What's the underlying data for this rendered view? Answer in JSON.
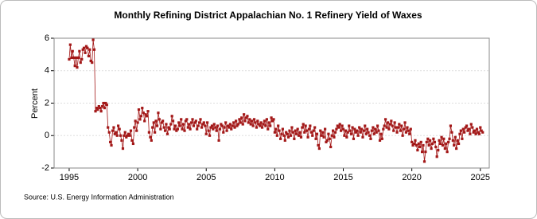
{
  "chart_data": {
    "type": "line",
    "title": "Monthly Refining District Appalachian No. 1 Refinery Yield of Waxes",
    "ylabel": "Percent",
    "source": "Source: U.S. Energy Information Administration",
    "xlim": [
      1993.9,
      2025.65
    ],
    "ylim": [
      -2,
      6
    ],
    "xticks": [
      1995,
      2000,
      2005,
      2010,
      2015,
      2020,
      2025
    ],
    "yticks": [
      -2,
      0,
      2,
      4,
      6
    ],
    "grid": true,
    "x": [
      1995,
      1995.08,
      1995.17,
      1995.25,
      1995.33,
      1995.42,
      1995.5,
      1995.58,
      1995.67,
      1995.75,
      1995.83,
      1995.92,
      1996,
      1996.08,
      1996.17,
      1996.25,
      1996.33,
      1996.42,
      1996.5,
      1996.58,
      1996.67,
      1996.75,
      1996.83,
      1996.92,
      1997,
      1997.08,
      1997.17,
      1997.25,
      1997.33,
      1997.42,
      1997.5,
      1997.58,
      1997.67,
      1997.75,
      1997.83,
      1997.92,
      1998,
      1998.08,
      1998.17,
      1998.25,
      1998.33,
      1998.42,
      1998.5,
      1998.58,
      1998.67,
      1998.75,
      1998.83,
      1998.92,
      1999,
      1999.08,
      1999.17,
      1999.25,
      1999.33,
      1999.42,
      1999.5,
      1999.58,
      1999.67,
      1999.75,
      1999.83,
      1999.92,
      2000,
      2000.08,
      2000.17,
      2000.25,
      2000.33,
      2000.42,
      2000.5,
      2000.58,
      2000.67,
      2000.75,
      2000.83,
      2000.92,
      2001,
      2001.08,
      2001.17,
      2001.25,
      2001.33,
      2001.42,
      2001.5,
      2001.58,
      2001.67,
      2001.75,
      2001.83,
      2001.92,
      2002,
      2002.08,
      2002.17,
      2002.25,
      2002.33,
      2002.42,
      2002.5,
      2002.58,
      2002.67,
      2002.75,
      2002.83,
      2002.92,
      2003,
      2003.08,
      2003.17,
      2003.25,
      2003.33,
      2003.42,
      2003.5,
      2003.58,
      2003.67,
      2003.75,
      2003.83,
      2003.92,
      2004,
      2004.08,
      2004.17,
      2004.25,
      2004.33,
      2004.42,
      2004.5,
      2004.58,
      2004.67,
      2004.75,
      2004.83,
      2004.92,
      2005,
      2005.08,
      2005.17,
      2005.25,
      2005.33,
      2005.42,
      2005.5,
      2005.58,
      2005.67,
      2005.75,
      2005.83,
      2005.92,
      2006,
      2006.08,
      2006.17,
      2006.25,
      2006.33,
      2006.42,
      2006.5,
      2006.58,
      2006.67,
      2006.75,
      2006.83,
      2006.92,
      2007,
      2007.08,
      2007.17,
      2007.25,
      2007.33,
      2007.42,
      2007.5,
      2007.58,
      2007.67,
      2007.75,
      2007.83,
      2007.92,
      2008,
      2008.08,
      2008.17,
      2008.25,
      2008.33,
      2008.42,
      2008.5,
      2008.58,
      2008.67,
      2008.75,
      2008.83,
      2008.92,
      2009,
      2009.08,
      2009.17,
      2009.25,
      2009.33,
      2009.42,
      2009.5,
      2009.58,
      2009.67,
      2009.75,
      2009.83,
      2009.92,
      2010,
      2010.08,
      2010.17,
      2010.25,
      2010.33,
      2010.42,
      2010.5,
      2010.58,
      2010.67,
      2010.75,
      2010.83,
      2010.92,
      2011,
      2011.08,
      2011.17,
      2011.25,
      2011.33,
      2011.42,
      2011.5,
      2011.58,
      2011.67,
      2011.75,
      2011.83,
      2011.92,
      2012,
      2012.08,
      2012.17,
      2012.25,
      2012.33,
      2012.42,
      2012.5,
      2012.58,
      2012.67,
      2012.75,
      2012.83,
      2012.92,
      2013,
      2013.08,
      2013.17,
      2013.25,
      2013.33,
      2013.42,
      2013.5,
      2013.58,
      2013.67,
      2013.75,
      2013.83,
      2013.92,
      2014,
      2014.08,
      2014.17,
      2014.25,
      2014.33,
      2014.42,
      2014.5,
      2014.58,
      2014.67,
      2014.75,
      2014.83,
      2014.92,
      2015,
      2015.08,
      2015.17,
      2015.25,
      2015.33,
      2015.42,
      2015.5,
      2015.58,
      2015.67,
      2015.75,
      2015.83,
      2015.92,
      2016,
      2016.08,
      2016.17,
      2016.25,
      2016.33,
      2016.42,
      2016.5,
      2016.58,
      2016.67,
      2016.75,
      2016.83,
      2016.92,
      2017,
      2017.08,
      2017.17,
      2017.25,
      2017.33,
      2017.42,
      2017.5,
      2017.58,
      2017.67,
      2017.75,
      2017.83,
      2017.92,
      2018,
      2018.08,
      2018.17,
      2018.25,
      2018.33,
      2018.42,
      2018.5,
      2018.58,
      2018.67,
      2018.75,
      2018.83,
      2018.92,
      2019,
      2019.08,
      2019.17,
      2019.25,
      2019.33,
      2019.42,
      2019.5,
      2019.58,
      2019.67,
      2019.75,
      2019.83,
      2019.92,
      2020,
      2020.08,
      2020.17,
      2020.25,
      2020.33,
      2020.42,
      2020.5,
      2020.58,
      2020.67,
      2020.75,
      2020.83,
      2020.92,
      2021,
      2021.08,
      2021.17,
      2021.25,
      2021.33,
      2021.42,
      2021.5,
      2021.58,
      2021.67,
      2021.75,
      2021.83,
      2021.92,
      2022,
      2022.08,
      2022.17,
      2022.25,
      2022.33,
      2022.42,
      2022.5,
      2022.58,
      2022.67,
      2022.75,
      2022.83,
      2022.92,
      2023,
      2023.08,
      2023.17,
      2023.25,
      2023.33,
      2023.42,
      2023.5,
      2023.58,
      2023.67,
      2023.75,
      2023.83,
      2023.92,
      2024,
      2024.08,
      2024.17,
      2024.25,
      2024.33,
      2024.42,
      2024.5,
      2024.58,
      2024.67,
      2024.75,
      2024.83,
      2024.92,
      2025,
      2025.08,
      2025.17
    ],
    "series": [
      {
        "color": "#a31818",
        "values": [
          4.7,
          5.6,
          4.8,
          5.2,
          4.8,
          4.3,
          4.8,
          4.2,
          4.8,
          5.2,
          4.5,
          4.7,
          5.3,
          5.4,
          5.1,
          5.5,
          5.4,
          4.9,
          5.3,
          4.6,
          4.5,
          5.9,
          5.3,
          1.5,
          1.7,
          1.6,
          1.8,
          1.7,
          1.5,
          1.8,
          2.0,
          1.7,
          2.0,
          1.9,
          0.5,
          0.2,
          -0.4,
          -0.6,
          0.3,
          0.5,
          0.1,
          0.2,
          0.0,
          0.6,
          0.4,
          0.0,
          -0.3,
          -0.8,
          0.0,
          0.2,
          -0.1,
          0.0,
          0.1,
          0.0,
          0.3,
          -0.3,
          -0.5,
          0.5,
          0.9,
          0.3,
          0.8,
          1.6,
          1.0,
          1.2,
          1.7,
          1.4,
          0.9,
          1.3,
          1.2,
          1.5,
          0.2,
          -0.1,
          -0.3,
          0.5,
          0.8,
          0.2,
          0.9,
          0.6,
          1.4,
          1.0,
          0.4,
          0.8,
          0.9,
          0.5,
          0.3,
          0.7,
          0.1,
          0.5,
          0.4,
          0.7,
          1.2,
          0.9,
          0.4,
          0.6,
          0.3,
          0.4,
          0.8,
          0.6,
          1.0,
          0.4,
          0.7,
          0.3,
          0.9,
          1.0,
          0.5,
          0.7,
          0.4,
          0.8,
          1.0,
          0.6,
          0.8,
          0.9,
          0.4,
          0.6,
          0.8,
          1.0,
          0.5,
          0.7,
          0.8,
          0.6,
          0.1,
          0.8,
          0.3,
          0.0,
          0.5,
          0.6,
          0.4,
          0.7,
          0.5,
          0.3,
          0.6,
          -0.3,
          0.4,
          0.7,
          0.6,
          0.2,
          0.5,
          0.8,
          0.3,
          0.6,
          0.5,
          0.7,
          0.4,
          0.6,
          0.8,
          0.5,
          0.9,
          0.6,
          0.7,
          1.0,
          0.8,
          1.1,
          0.7,
          1.3,
          0.9,
          1.1,
          1.2,
          0.8,
          1.0,
          0.7,
          0.9,
          0.6,
          1.0,
          0.8,
          0.5,
          0.9,
          0.7,
          0.6,
          0.8,
          0.5,
          0.7,
          0.9,
          0.6,
          1.0,
          0.4,
          0.8,
          0.6,
          1.1,
          0.9,
          1.0,
          0.2,
          0.4,
          0.0,
          0.6,
          0.3,
          -0.2,
          0.1,
          0.4,
          0.0,
          -0.3,
          0.2,
          0.1,
          -0.1,
          0.3,
          0.0,
          0.5,
          0.2,
          -0.2,
          0.3,
          0.1,
          0.4,
          0.0,
          0.2,
          -0.1,
          0.5,
          0.7,
          0.2,
          0.6,
          0.3,
          -0.1,
          0.4,
          0.6,
          0.2,
          0.0,
          0.3,
          0.5,
          -0.2,
          0.1,
          -0.6,
          -0.8,
          0.3,
          0.0,
          0.2,
          -0.1,
          0.4,
          -0.4,
          -0.3,
          0.1,
          -0.2,
          -0.7,
          0.0,
          0.3,
          -0.1,
          0.2,
          0.4,
          0.6,
          0.5,
          0.7,
          0.3,
          0.6,
          0.4,
          0.0,
          0.3,
          -0.1,
          0.2,
          0.6,
          0.3,
          0.1,
          0.5,
          -0.2,
          0.4,
          0.2,
          0.3,
          0.0,
          0.5,
          0.2,
          0.4,
          -0.1,
          0.3,
          0.6,
          0.1,
          0.4,
          0.2,
          0.0,
          -0.2,
          0.3,
          0.5,
          0.1,
          0.4,
          0.2,
          0.6,
          0.3,
          -0.3,
          0.1,
          -0.2,
          0.4,
          0.6,
          1.0,
          0.5,
          0.8,
          0.4,
          0.7,
          0.9,
          0.6,
          0.3,
          0.8,
          0.5,
          0.2,
          0.5,
          0.7,
          0.3,
          0.6,
          0.0,
          0.4,
          0.8,
          0.2,
          0.5,
          0.3,
          0.1,
          0.4,
          -0.4,
          -0.6,
          -0.5,
          -0.3,
          -0.6,
          -0.9,
          -0.5,
          -0.7,
          -0.4,
          -1.0,
          -0.6,
          -1.6,
          -1.0,
          -0.4,
          -0.2,
          -0.6,
          -0.3,
          -0.8,
          -0.5,
          -0.2,
          -0.4,
          -0.7,
          -1.3,
          -0.9,
          -0.3,
          -0.5,
          -0.1,
          -0.6,
          -0.2,
          -0.8,
          -0.5,
          -1.0,
          -0.4,
          -0.2,
          0.6,
          0.2,
          -0.3,
          -0.6,
          -0.1,
          -0.8,
          -0.3,
          -0.5,
          0.1,
          0.3,
          -0.2,
          0.4,
          0.2,
          0.5,
          0.6,
          0.3,
          0.4,
          0.1,
          0.7,
          0.5,
          0.2,
          0.3,
          0.1,
          0.4,
          0.2,
          0.1,
          0.5,
          0.3,
          0.2
        ]
      }
    ]
  }
}
